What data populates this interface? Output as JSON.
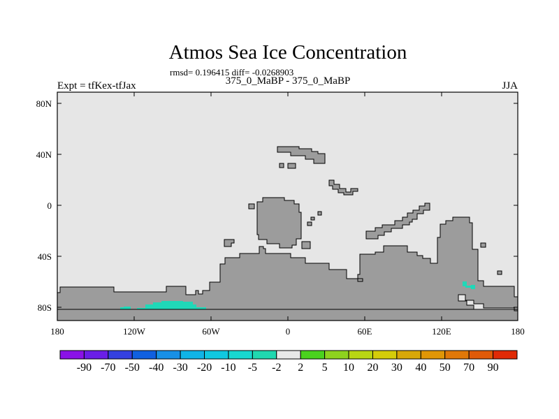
{
  "map": {
    "title": "Atmos Sea Ice Concentration",
    "stats_line": "rmsd= 0.196415 diff= -0.0268903",
    "subtitle": "375_0_MaBP - 375_0_MaBP",
    "left_label": "Expt = tfKex-tfJax",
    "right_label": "JJA",
    "lat_ticks": [
      "80N",
      "40N",
      "0",
      "40S",
      "80S"
    ],
    "lon_ticks": [
      "180",
      "120W",
      "60W",
      "0",
      "60E",
      "120E",
      "180"
    ],
    "colors": {
      "ocean": "#e6e6e6",
      "land": "#9c9c9c",
      "coastline": "#000000",
      "anomaly": "#20d8b8"
    }
  },
  "colorbar": {
    "colors": [
      "#8a12e6",
      "#6a1ee6",
      "#3440e0",
      "#1060e0",
      "#1890e6",
      "#10b4e6",
      "#10c8e0",
      "#18d8d0",
      "#20d8b0",
      "#e8e8e8",
      "#4ad21e",
      "#8ed21e",
      "#b8d614",
      "#d4cc0a",
      "#d8a808",
      "#e09606",
      "#e07808",
      "#e05a08",
      "#e02a06"
    ],
    "labels": [
      "-90",
      "-70",
      "-50",
      "-40",
      "-30",
      "-20",
      "-10",
      "-5",
      "-2",
      "2",
      "5",
      "10",
      "20",
      "30",
      "40",
      "50",
      "70",
      "90"
    ]
  }
}
